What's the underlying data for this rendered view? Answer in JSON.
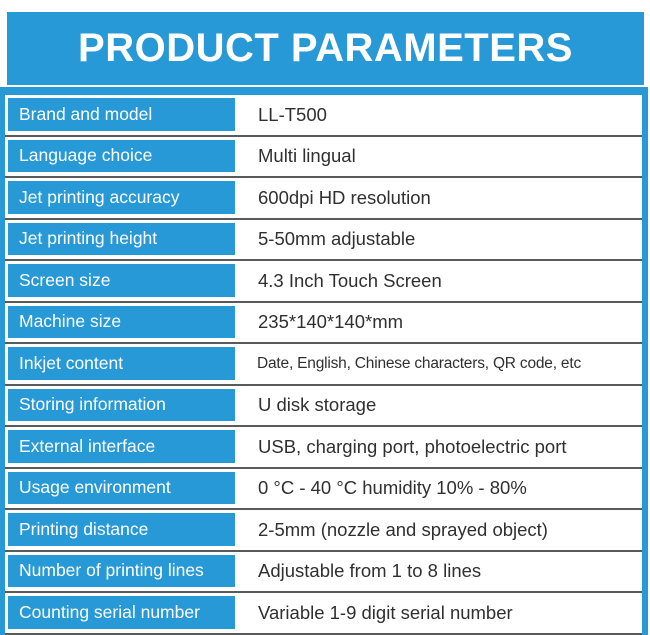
{
  "colors": {
    "accent": "#2799D6",
    "separator": "#5a5a5a",
    "value_text": "#303030",
    "label_text": "#ffffff",
    "background": "#ffffff"
  },
  "header": {
    "title": "PRODUCT PARAMETERS"
  },
  "spec_table": {
    "rows": [
      {
        "label": "Brand and model",
        "value": "LL-T500"
      },
      {
        "label": "Language choice",
        "value": "Multi lingual"
      },
      {
        "label": "Jet printing accuracy",
        "value": "600dpi HD resolution"
      },
      {
        "label": "Jet printing height",
        "value": "5-50mm adjustable"
      },
      {
        "label": "Screen size",
        "value": "4.3 Inch Touch Screen"
      },
      {
        "label": "Machine size",
        "value": "235*140*140*mm"
      },
      {
        "label": "Inkjet content",
        "value": "Date, English, Chinese characters, QR code, etc"
      },
      {
        "label": "Storing information",
        "value": "U disk storage"
      },
      {
        "label": "External interface",
        "value": "USB, charging port, photoelectric port"
      },
      {
        "label": "Usage environment",
        "value": "0 °C - 40 °C humidity 10% - 80%"
      },
      {
        "label": "Printing distance",
        "value": "2-5mm (nozzle and sprayed object)"
      },
      {
        "label": "Number of printing lines",
        "value": "Adjustable from 1 to 8 lines"
      },
      {
        "label": "Counting serial number",
        "value": "Variable 1-9 digit serial number"
      }
    ]
  }
}
